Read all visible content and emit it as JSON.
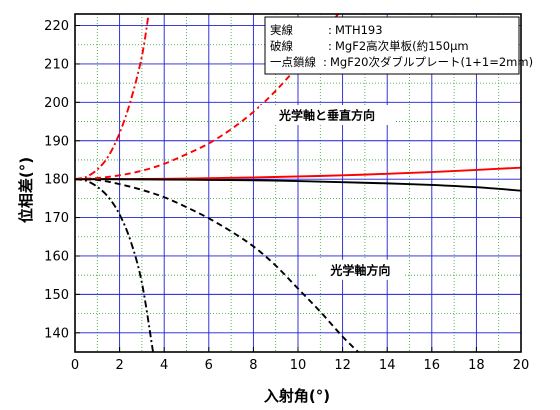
{
  "chart_data": {
    "type": "line",
    "xlabel": "入射角(°)",
    "ylabel": "位相差(°)",
    "xlim": [
      0,
      20
    ],
    "ylim": [
      135,
      223
    ],
    "x_ticks": [
      0,
      2,
      4,
      6,
      8,
      10,
      12,
      14,
      16,
      18,
      20
    ],
    "y_ticks": [
      140,
      150,
      160,
      170,
      180,
      190,
      200,
      210,
      220
    ],
    "grid": true,
    "legend_position": "top-right",
    "legend": [
      {
        "style": "実線",
        "sep": ":",
        "desc": "MTH193"
      },
      {
        "style": "破線",
        "sep": ":",
        "desc": "MgF2高次単板(約150μm"
      },
      {
        "style": "一点鎖線",
        "sep": ":",
        "desc": "MgF20次ダブルプレート(1+1=2mm)"
      }
    ],
    "annotations": [
      {
        "text": "光学軸と垂直方向",
        "x": 11.3,
        "y": 196.7
      },
      {
        "text": "光学軸方向",
        "x": 12.8,
        "y": 156.4
      }
    ],
    "series": [
      {
        "line": "solid",
        "color": "#ff0000",
        "dash": "",
        "x": [
          0,
          2,
          4,
          6,
          8,
          10,
          12,
          14,
          16,
          18,
          20
        ],
        "y": [
          180,
          180.02,
          180.1,
          180.25,
          180.45,
          180.7,
          181.0,
          181.4,
          181.85,
          182.4,
          183.0
        ]
      },
      {
        "line": "solid",
        "color": "#000000",
        "dash": "",
        "x": [
          0,
          2,
          4,
          6,
          8,
          10,
          12,
          14,
          16,
          18,
          20
        ],
        "y": [
          180,
          179.98,
          179.9,
          179.8,
          179.7,
          179.5,
          179.2,
          178.9,
          178.5,
          177.9,
          177.0
        ]
      },
      {
        "line": "dashed",
        "color": "#ff0000",
        "dash": "6,4",
        "x": [
          0,
          1,
          2,
          3,
          4,
          5,
          6,
          7,
          8,
          9,
          10,
          11,
          11.8
        ],
        "y": [
          180,
          180.3,
          181.0,
          182.2,
          184.0,
          186.5,
          189.3,
          193.0,
          197.5,
          203.0,
          209.5,
          217.0,
          223.0
        ]
      },
      {
        "line": "dashed",
        "color": "#000000",
        "dash": "6,4",
        "x": [
          0,
          1,
          2,
          3,
          4,
          5,
          6,
          7,
          8,
          9,
          10,
          11,
          12,
          12.7
        ],
        "y": [
          180,
          179.8,
          178.7,
          177.2,
          175.3,
          172.7,
          169.8,
          166.4,
          162.5,
          157.5,
          151.5,
          145.5,
          139.0,
          135.0
        ]
      },
      {
        "line": "dashdot",
        "color": "#ff0000",
        "dash": "7,3,2,3",
        "x": [
          0,
          0.5,
          1,
          1.5,
          2,
          2.5,
          3,
          3.3
        ],
        "y": [
          180,
          180.6,
          182.5,
          186.0,
          192.0,
          200.5,
          212.0,
          223.0
        ]
      },
      {
        "line": "dashdot",
        "color": "#000000",
        "dash": "7,3,2,3",
        "x": [
          0,
          0.5,
          1,
          1.5,
          2,
          2.5,
          3,
          3.5
        ],
        "y": [
          180,
          179.6,
          178.0,
          175.3,
          170.8,
          163.8,
          153.0,
          135.0
        ]
      }
    ]
  }
}
